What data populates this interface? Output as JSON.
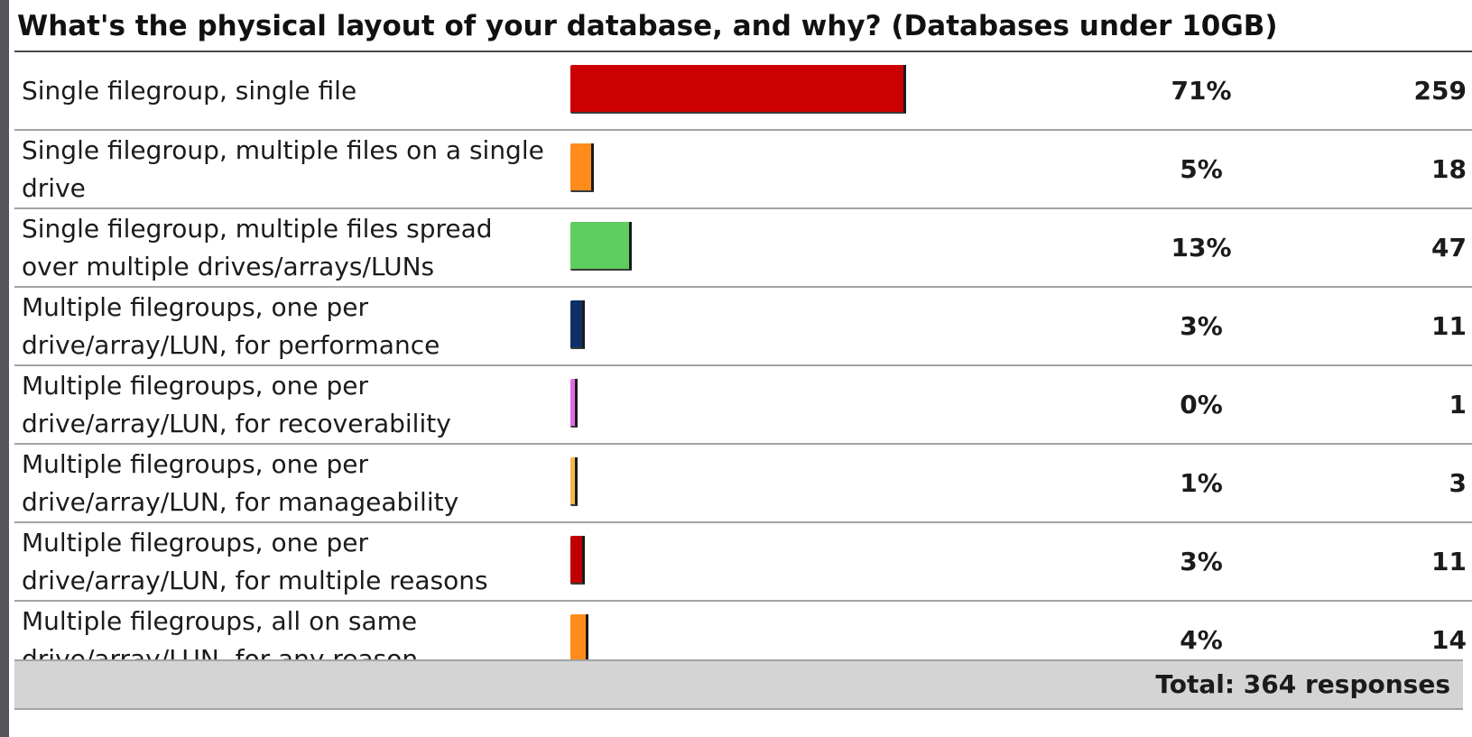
{
  "chart_data": {
    "type": "bar",
    "orientation": "horizontal",
    "title": "What's the physical layout of your database, and why? (Databases under 10GB)",
    "categories": [
      "Single filegroup, single file",
      "Single filegroup, multiple files on a single drive",
      "Single filegroup, multiple files spread over multiple drives/arrays/LUNs",
      "Multiple filegroups, one per drive/array/LUN, for performance",
      "Multiple filegroups, one per drive/array/LUN, for recoverability",
      "Multiple filegroups, one per drive/array/LUN, for manageability",
      "Multiple filegroups, one per drive/array/LUN, for multiple reasons",
      "Multiple filegroups, all on same drive/array/LUN, for any reason"
    ],
    "percent_labels": [
      "71%",
      "5%",
      "13%",
      "3%",
      "0%",
      "1%",
      "3%",
      "4%"
    ],
    "values": [
      259,
      18,
      47,
      11,
      1,
      3,
      11,
      14
    ],
    "bar_colors": [
      "#cc0000",
      "#ff8c1a",
      "#5fcc5f",
      "#0f2f66",
      "#e06be6",
      "#f2b84a",
      "#c00000",
      "#ff8c1a"
    ],
    "total_label": "Total: 364 responses"
  }
}
